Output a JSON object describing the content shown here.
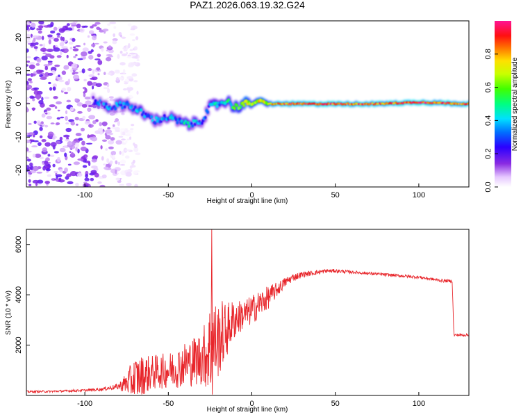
{
  "figure": {
    "title": "PAZ1.2026.063.19.32.G24"
  },
  "chart_data": [
    {
      "type": "heatmap",
      "title": "PAZ1.2026.063.19.32.G24",
      "xlabel": "Height of straight line (km)",
      "ylabel": "Frequency (Hz)",
      "xlim": [
        -135,
        130
      ],
      "ylim": [
        -25,
        25
      ],
      "x_ticks": [
        -100,
        -50,
        0,
        50,
        100
      ],
      "y_ticks": [
        -20,
        -10,
        0,
        10,
        20
      ],
      "grid": false,
      "colorbar": {
        "label": "Normalized spectral amplitude",
        "range": [
          0,
          1
        ],
        "ticks": [
          0.0,
          0.2,
          0.4,
          0.6,
          0.8
        ],
        "colormap": "rainbow (violet-blue-cyan-green-yellow-red-pink)"
      },
      "ridge": {
        "description": "Dominant frequency track versus height",
        "x": [
          -95,
          -85,
          -75,
          -65,
          -58,
          -50,
          -45,
          -40,
          -35,
          -30,
          -25,
          -20,
          -15,
          -10,
          -5,
          0,
          5,
          10,
          15,
          25,
          50,
          75,
          100,
          130
        ],
        "y": [
          1,
          -1,
          0,
          -3,
          -5,
          -4,
          -5,
          -6,
          -6,
          -5,
          -1,
          0,
          1,
          -1,
          0,
          0,
          1,
          0,
          0,
          0,
          0,
          0,
          0.5,
          0
        ],
        "amplitude": [
          0.25,
          0.3,
          0.3,
          0.35,
          0.3,
          0.35,
          0.35,
          0.4,
          0.35,
          0.3,
          0.35,
          0.4,
          0.4,
          0.5,
          0.7,
          0.6,
          0.75,
          0.7,
          0.8,
          0.9,
          0.85,
          0.85,
          0.9,
          0.85
        ]
      },
      "noise_region": {
        "description": "Scattered low-amplitude blobs across all frequencies at low heights",
        "x_range": [
          -135,
          -80
        ],
        "y_range": [
          -25,
          25
        ],
        "amplitude_range": [
          0.0,
          0.2
        ]
      }
    },
    {
      "type": "line",
      "xlabel": "Height of straight line (km)",
      "ylabel": "SNR (10 * v/v)",
      "xlim": [
        -135,
        130
      ],
      "ylim": [
        0,
        6600
      ],
      "x_ticks": [
        -100,
        -50,
        0,
        50,
        100
      ],
      "y_ticks": [
        2000,
        4000,
        6000
      ],
      "grid": false,
      "color": "#e8262b",
      "series": [
        {
          "name": "SNR",
          "x": [
            -135,
            -120,
            -100,
            -90,
            -80,
            -75,
            -70,
            -65,
            -60,
            -55,
            -50,
            -45,
            -40,
            -35,
            -30,
            -26,
            -24,
            -23,
            -22,
            -20,
            -18,
            -15,
            -12,
            -10,
            -8,
            -5,
            -2,
            0,
            5,
            10,
            15,
            20,
            25,
            30,
            35,
            40,
            45,
            50,
            60,
            70,
            80,
            90,
            100,
            110,
            115,
            120,
            121,
            125,
            130
          ],
          "y": [
            150,
            160,
            200,
            250,
            350,
            500,
            650,
            800,
            900,
            950,
            1000,
            1100,
            1250,
            1350,
            1500,
            1750,
            1950,
            2000,
            2100,
            2200,
            2400,
            2600,
            2900,
            3050,
            3100,
            3200,
            3300,
            3400,
            3650,
            3900,
            4200,
            4500,
            4700,
            4800,
            4850,
            4900,
            4950,
            4950,
            4900,
            4850,
            4800,
            4750,
            4700,
            4600,
            4550,
            4550,
            2400,
            2400,
            2400
          ],
          "noise_amplitude": [
            40,
            40,
            50,
            60,
            120,
            450,
            900,
            800,
            700,
            700,
            700,
            800,
            900,
            1000,
            1100,
            1600,
            2400,
            2200,
            1700,
            1500,
            1400,
            1100,
            900,
            800,
            700,
            600,
            600,
            600,
            550,
            450,
            300,
            200,
            150,
            120,
            100,
            90,
            80,
            70,
            60,
            60,
            60,
            60,
            60,
            60,
            60,
            60,
            60,
            50,
            50
          ],
          "annotations": [
            {
              "x": -24,
              "y": 6600,
              "note": "maximum spike"
            },
            {
              "x": 121,
              "y": 2400,
              "note": "abrupt drop"
            }
          ]
        }
      ]
    }
  ]
}
